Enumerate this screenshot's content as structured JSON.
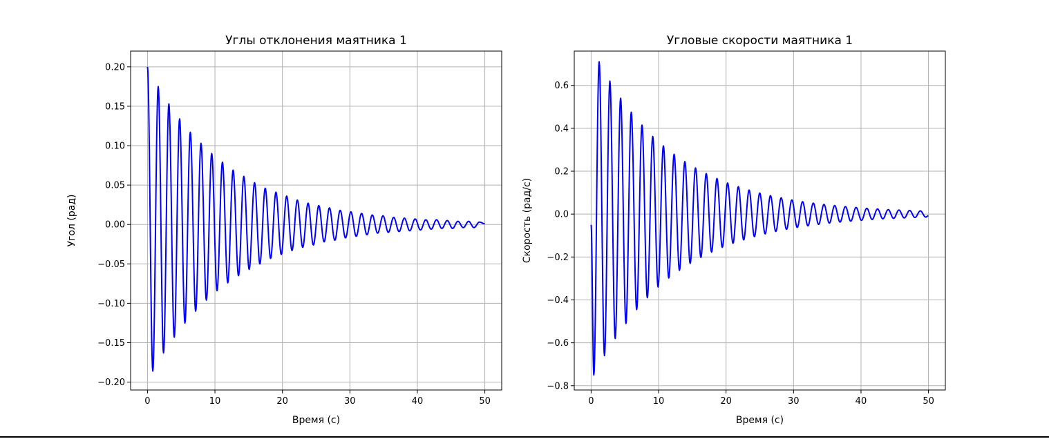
{
  "chart_data": [
    {
      "type": "line",
      "title": "Углы отклонения маятника 1",
      "xlabel": "Время (с)",
      "ylabel": "Угол (рад)",
      "xlim": [
        -2.5,
        52.5
      ],
      "ylim": [
        -0.21,
        0.22
      ],
      "xticks": [
        0,
        10,
        20,
        30,
        40,
        50
      ],
      "yticks": [
        -0.2,
        -0.15,
        -0.1,
        -0.05,
        0.0,
        0.05,
        0.1,
        0.15,
        0.2
      ],
      "ytick_labels": [
        "−0.20",
        "−0.15",
        "−0.10",
        "−0.05",
        "0.00",
        "0.05",
        "0.10",
        "0.15",
        "0.20"
      ],
      "xtick_labels": [
        "0",
        "10",
        "20",
        "30",
        "40",
        "50"
      ],
      "grid": true,
      "color": "#0000ff",
      "series": [
        {
          "x": [
            0,
            0.79,
            1.59,
            2.38,
            3.17,
            3.97,
            4.76,
            5.55,
            6.35,
            7.14,
            7.93,
            8.73,
            9.52,
            10.31,
            11.11,
            11.9,
            12.69,
            13.49,
            14.28,
            15.07,
            15.87,
            16.66,
            17.45,
            18.25,
            19.04,
            19.83,
            20.63,
            21.42,
            22.21,
            23.01,
            23.8,
            24.59,
            25.39,
            26.18,
            26.97,
            27.77,
            28.56,
            29.35,
            30.15,
            30.94,
            31.73,
            32.53,
            33.32,
            34.11,
            34.91,
            35.7,
            36.49,
            37.29,
            38.08,
            38.87,
            39.67,
            40.46,
            41.25,
            42.05,
            42.84,
            43.63,
            44.43,
            45.22,
            46.01,
            46.81,
            47.6,
            48.39,
            49.19,
            49.98
          ],
          "values": [
            0.2,
            -0.186,
            0.175,
            -0.163,
            0.153,
            -0.143,
            0.134,
            -0.125,
            0.117,
            -0.11,
            0.103,
            -0.096,
            0.09,
            -0.084,
            0.079,
            -0.074,
            0.069,
            -0.065,
            0.061,
            -0.057,
            0.053,
            -0.05,
            0.046,
            -0.043,
            0.041,
            -0.038,
            0.036,
            -0.033,
            0.031,
            -0.029,
            0.027,
            -0.026,
            0.024,
            -0.022,
            0.021,
            -0.02,
            0.018,
            -0.017,
            0.016,
            -0.015,
            0.014,
            -0.013,
            0.012,
            -0.011,
            0.011,
            -0.01,
            0.009,
            -0.009,
            0.008,
            -0.008,
            0.007,
            -0.007,
            0.006,
            -0.006,
            0.006,
            -0.005,
            0.005,
            -0.005,
            0.004,
            -0.004,
            0.004,
            -0.004,
            0.003,
            0.001
          ]
        }
      ]
    },
    {
      "type": "line",
      "title": "Угловые скорости маятника 1",
      "xlabel": "Время (с)",
      "ylabel": "Скорость (рад/с)",
      "xlim": [
        -2.5,
        52.5
      ],
      "ylim": [
        -0.82,
        0.76
      ],
      "xticks": [
        0,
        10,
        20,
        30,
        40,
        50
      ],
      "yticks": [
        -0.8,
        -0.6,
        -0.4,
        -0.2,
        0.0,
        0.2,
        0.4,
        0.6
      ],
      "ytick_labels": [
        "−0.8",
        "−0.6",
        "−0.4",
        "−0.2",
        "0.0",
        "0.2",
        "0.4",
        "0.6"
      ],
      "xtick_labels": [
        "0",
        "10",
        "20",
        "30",
        "40",
        "50"
      ],
      "grid": true,
      "color": "#0000ff",
      "series": [
        {
          "x": [
            0,
            0.4,
            1.19,
            1.98,
            2.78,
            3.57,
            4.37,
            5.16,
            5.95,
            6.75,
            7.54,
            8.33,
            9.13,
            9.92,
            10.71,
            11.51,
            12.3,
            13.09,
            13.89,
            14.68,
            15.47,
            16.27,
            17.06,
            17.85,
            18.65,
            19.44,
            20.23,
            21.03,
            21.82,
            22.61,
            23.41,
            24.2,
            24.99,
            25.79,
            26.58,
            27.37,
            28.17,
            28.96,
            29.75,
            30.55,
            31.34,
            32.13,
            32.93,
            33.72,
            34.51,
            35.31,
            36.1,
            36.89,
            37.69,
            38.48,
            39.27,
            40.07,
            40.86,
            41.65,
            42.45,
            43.24,
            44.03,
            44.83,
            45.62,
            46.41,
            47.21,
            48.0,
            48.79,
            49.59,
            49.98
          ],
          "values": [
            -0.05,
            -0.75,
            0.71,
            -0.66,
            0.62,
            -0.58,
            0.54,
            -0.51,
            0.475,
            -0.445,
            0.415,
            -0.39,
            0.362,
            -0.34,
            0.318,
            -0.298,
            0.279,
            -0.262,
            0.245,
            -0.23,
            0.215,
            -0.202,
            0.189,
            -0.177,
            0.166,
            -0.155,
            0.145,
            -0.136,
            0.128,
            -0.12,
            0.112,
            -0.105,
            0.098,
            -0.092,
            0.086,
            -0.081,
            0.076,
            -0.071,
            0.066,
            -0.062,
            0.058,
            -0.055,
            0.051,
            -0.048,
            0.045,
            -0.042,
            0.04,
            -0.037,
            0.035,
            -0.033,
            0.031,
            -0.029,
            0.027,
            -0.025,
            0.024,
            -0.022,
            0.021,
            -0.02,
            0.019,
            -0.018,
            0.017,
            -0.016,
            0.015,
            -0.014,
            -0.008
          ]
        }
      ]
    }
  ]
}
